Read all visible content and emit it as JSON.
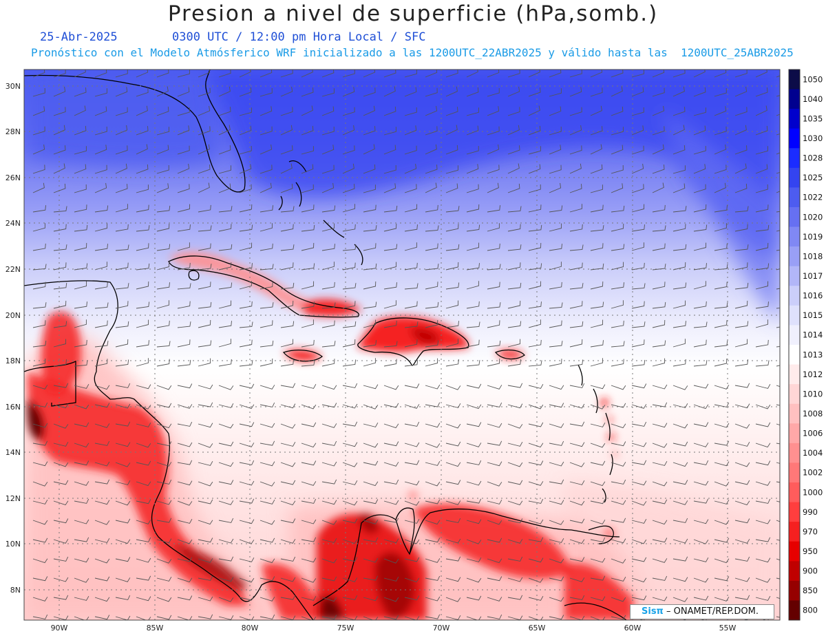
{
  "title": "Presion a nivel de superficie (hPa,somb.)",
  "date": "25-Abr-2025",
  "time_info": "0300 UTC / 12:00 pm Hora Local / SFC",
  "forecast_info": "Pronóstico con el Modelo Atmósferico WRF inicializado a las 1200UTC_22ABR2025 y válido hasta las  1200UTC_25ABR2025",
  "lat_labels": [
    "30N",
    "28N",
    "26N",
    "24N",
    "22N",
    "20N",
    "18N",
    "16N",
    "14N",
    "12N",
    "10N",
    "8N"
  ],
  "lon_labels": [
    "90W",
    "85W",
    "80W",
    "75W",
    "70W",
    "65W",
    "60W",
    "55W"
  ],
  "colorbar": {
    "levels": [
      "1050",
      "1040",
      "1035",
      "1030",
      "1028",
      "1025",
      "1022",
      "1020",
      "1019",
      "1018",
      "1017",
      "1016",
      "1015",
      "1014",
      "1013",
      "1012",
      "1010",
      "1008",
      "1006",
      "1004",
      "1002",
      "1000",
      "990",
      "970",
      "950",
      "900",
      "850",
      "800"
    ],
    "colors": [
      "#0c0c48",
      "#00008f",
      "#0000cc",
      "#0000ff",
      "#1b2cff",
      "#3444f0",
      "#4d5cf0",
      "#6670f2",
      "#8088f4",
      "#999ff6",
      "#b2b6f8",
      "#cbcefa",
      "#dfe1fc",
      "#f0f0fd",
      "#ffffff",
      "#ffebeb",
      "#ffd6d6",
      "#ffc0c0",
      "#ffa8a8",
      "#ff9090",
      "#ff7878",
      "#ff5c5c",
      "#ff3e3e",
      "#f52020",
      "#e60000",
      "#c00000",
      "#960000",
      "#640000"
    ]
  },
  "credit": {
    "brand": "Sisπ",
    "text": "– ONAMET/REP.DOM."
  }
}
